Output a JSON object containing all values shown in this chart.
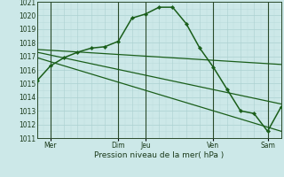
{
  "xlabel": "Pression niveau de la mer( hPa )",
  "bg_color": "#cce8e8",
  "grid_color_major": "#aad0d0",
  "grid_color_minor": "#bbdcdc",
  "line_color": "#1a5e1a",
  "ylim": [
    1011,
    1021
  ],
  "yticks": [
    1011,
    1012,
    1013,
    1014,
    1015,
    1016,
    1017,
    1018,
    1019,
    1020,
    1021
  ],
  "xlim": [
    0,
    18
  ],
  "xtick_positions": [
    1,
    6,
    8,
    13,
    17
  ],
  "xtick_labels": [
    "Mer",
    "Dim",
    "Jeu",
    "Ven",
    "Sam"
  ],
  "vline_positions": [
    1,
    6,
    8,
    13,
    17
  ],
  "series_main": {
    "x": [
      0,
      1,
      2,
      3,
      4,
      5,
      6,
      7,
      8,
      9,
      10,
      11,
      12,
      13,
      14,
      15,
      16,
      17,
      18
    ],
    "y": [
      1015.2,
      1016.3,
      1016.9,
      1017.3,
      1017.6,
      1017.7,
      1018.1,
      1019.8,
      1020.1,
      1020.6,
      1020.6,
      1019.4,
      1017.6,
      1016.2,
      1014.6,
      1013.0,
      1012.8,
      1011.5,
      1013.3
    ]
  },
  "series_straight": [
    {
      "x": [
        0,
        18
      ],
      "y": [
        1017.5,
        1016.4
      ]
    },
    {
      "x": [
        0,
        18
      ],
      "y": [
        1017.3,
        1013.5
      ]
    },
    {
      "x": [
        0,
        18
      ],
      "y": [
        1016.9,
        1011.5
      ]
    }
  ]
}
